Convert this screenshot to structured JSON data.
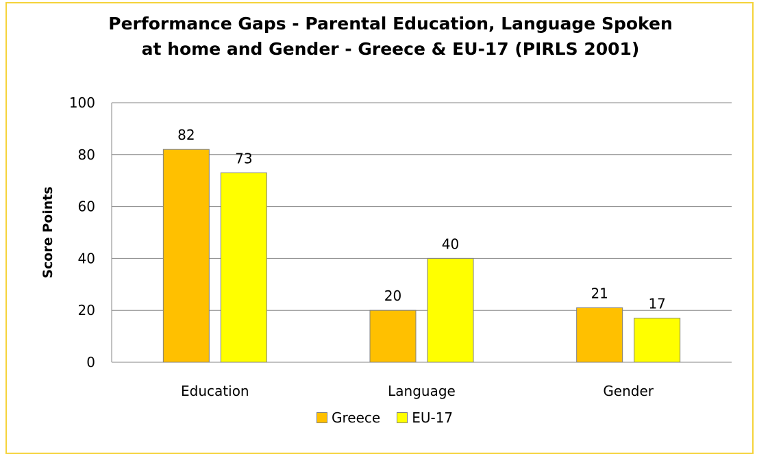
{
  "chart_data": {
    "type": "bar",
    "title": "Performance Gaps - Parental Education, Language Spoken at home and Gender - Greece & EU-17 (PIRLS 2001)",
    "xlabel": "",
    "ylabel": "Score Points",
    "categories": [
      "Education",
      "Language",
      "Gender"
    ],
    "series": [
      {
        "name": "Greece",
        "values": [
          82,
          20,
          21
        ],
        "color": "#ffc000"
      },
      {
        "name": "EU-17",
        "values": [
          73,
          40,
          17
        ],
        "color": "#ffff00"
      }
    ],
    "ylim": [
      0,
      100
    ],
    "yticks": [
      0,
      20,
      40,
      60,
      80,
      100
    ],
    "grid": true,
    "legend_position": "bottom"
  }
}
